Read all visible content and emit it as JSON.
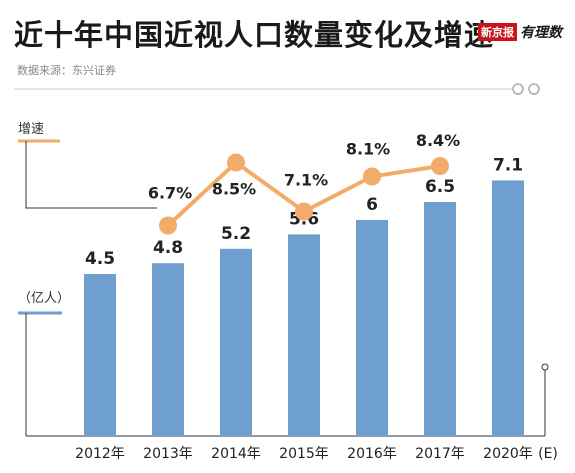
{
  "title": "近十年中国近视人口数量变化及增速",
  "source": "数据来源：东兴证券",
  "logo": {
    "red": "新京报",
    "black": "有理数"
  },
  "colors": {
    "bar": "#6f9fcf",
    "line": "#f2ac6a",
    "axis": "#333333"
  },
  "chart_data": {
    "type": "bar",
    "title": "近十年中国近视人口数量变化及增速",
    "categories": [
      "2012年",
      "2013年",
      "2014年",
      "2015年",
      "2016年",
      "2017年",
      "2020年"
    ],
    "category_suffix": "(E)",
    "bar_label": "（亿人）",
    "bar_values": [
      4.5,
      4.8,
      5.2,
      5.6,
      6,
      6.5,
      7.1
    ],
    "bar_value_labels": [
      "4.5",
      "4.8",
      "5.2",
      "5.6",
      "6",
      "6.5",
      "7.1"
    ],
    "line_label": "增速",
    "line_values": [
      6.7,
      8.5,
      7.1,
      8.1,
      8.4
    ],
    "line_value_labels": [
      "6.7%",
      "8.5%",
      "7.1%",
      "8.1%",
      "8.4%"
    ],
    "line_categories": [
      "2013年",
      "2014年",
      "2015年",
      "2016年",
      "2017年"
    ],
    "ylim": [
      0,
      8
    ],
    "rate_ylim": [
      6,
      10
    ],
    "grid": false
  }
}
